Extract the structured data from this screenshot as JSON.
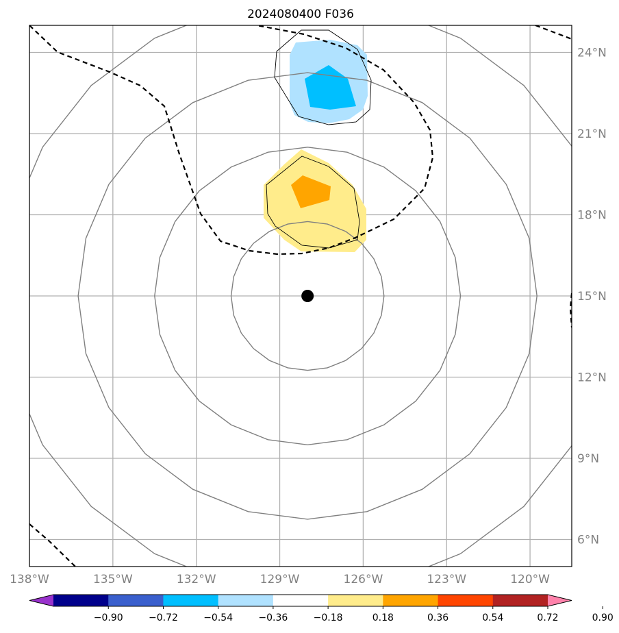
{
  "title": "2024080400 F036",
  "map": {
    "lon_range": [
      -138,
      -118.5
    ],
    "lat_range": [
      5,
      25
    ],
    "lon_ticks": [
      {
        "value": -138,
        "label": "138°W"
      },
      {
        "value": -135,
        "label": "135°W"
      },
      {
        "value": -132,
        "label": "132°W"
      },
      {
        "value": -129,
        "label": "129°W"
      },
      {
        "value": -126,
        "label": "126°W"
      },
      {
        "value": -123,
        "label": "123°W"
      },
      {
        "value": -120,
        "label": "120°W"
      }
    ],
    "lat_ticks": [
      {
        "value": 6,
        "label": "6°N"
      },
      {
        "value": 9,
        "label": "9°N"
      },
      {
        "value": 12,
        "label": "12°N"
      },
      {
        "value": 15,
        "label": "15°N"
      },
      {
        "value": 18,
        "label": "18°N"
      },
      {
        "value": 21,
        "label": "21°N"
      },
      {
        "value": 24,
        "label": "24°N"
      }
    ],
    "grid": true,
    "center_marker": {
      "lon": -128.0,
      "lat": 15.0
    },
    "range_rings_deg": [
      2.75,
      5.5,
      8.25,
      11.0
    ],
    "colors": {
      "grid": "#b0b0b0",
      "rings": "#808080",
      "contour": "#000000",
      "marker": "#000000"
    }
  },
  "colorbar": {
    "colors": [
      "#9932cc",
      "#00008b",
      "#3a5fcd",
      "#00bfff",
      "#b0e2ff",
      "#ffffff",
      "#ffec8b",
      "#ffa500",
      "#ff4500",
      "#b22222",
      "#ff82ab"
    ],
    "tick_labels": [
      "−0.90",
      "−0.72",
      "−0.54",
      "−0.36",
      "−0.18",
      "0.18",
      "0.36",
      "0.54",
      "0.72",
      "0.90"
    ],
    "extend": "both"
  }
}
